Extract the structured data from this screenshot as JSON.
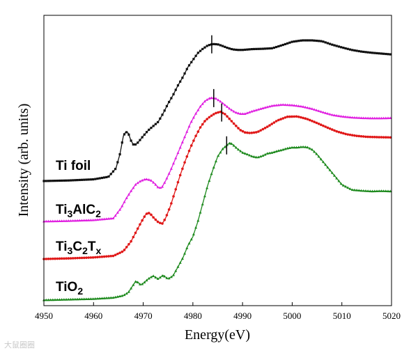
{
  "chart_data": {
    "type": "line",
    "xlabel": "Energy(eV)",
    "ylabel": "Intensity (arb. units)",
    "xlim": [
      4950,
      5020
    ],
    "xticks": [
      "4950",
      "4960",
      "4970",
      "4980",
      "4990",
      "5000",
      "5010",
      "5020"
    ],
    "yticks_shown": false,
    "grid": false,
    "legend": "none",
    "series": [
      {
        "name": "Ti foil",
        "name_parts": [
          {
            "t": "Ti foil",
            "s": ""
          }
        ],
        "color": "#111111",
        "marker": "square",
        "edge_marker_x": 4983.8,
        "x": [
          4950,
          4955,
          4960,
          4963,
          4964.5,
          4965.3,
          4966,
          4966.5,
          4967,
          4967.5,
          4968,
          4968.5,
          4969,
          4970,
          4971,
          4972,
          4973,
          4974,
          4975,
          4976,
          4977,
          4978,
          4979,
          4980,
          4981,
          4982,
          4983,
          4984,
          4985,
          4986,
          4987,
          4988,
          4989,
          4990,
          4992,
          4994,
          4996,
          4998,
          5000,
          5002,
          5004,
          5006,
          5008,
          5010,
          5012,
          5014,
          5016,
          5018,
          5020
        ],
        "y": [
          0.0,
          0.02,
          0.06,
          0.15,
          0.45,
          0.95,
          1.6,
          1.75,
          1.7,
          1.45,
          1.3,
          1.3,
          1.38,
          1.6,
          1.8,
          1.95,
          2.1,
          2.4,
          2.75,
          3.05,
          3.4,
          3.7,
          4.05,
          4.3,
          4.55,
          4.7,
          4.82,
          4.87,
          4.86,
          4.8,
          4.73,
          4.68,
          4.66,
          4.66,
          4.69,
          4.7,
          4.72,
          4.83,
          4.95,
          5.0,
          5.0,
          4.97,
          4.85,
          4.75,
          4.66,
          4.6,
          4.56,
          4.53,
          4.5
        ]
      },
      {
        "name": "Ti3AlC2",
        "name_parts": [
          {
            "t": "Ti",
            "s": ""
          },
          {
            "t": "3",
            "s": "sub"
          },
          {
            "t": "AlC",
            "s": ""
          },
          {
            "t": "2",
            "s": "sub"
          }
        ],
        "color": "#e020e0",
        "marker": "triangle",
        "edge_marker_x": 4984.2,
        "x": [
          4950,
          4955,
          4960,
          4964,
          4965.5,
          4966.5,
          4967.5,
          4968.5,
          4969.5,
          4970.5,
          4971.5,
          4972.3,
          4973,
          4973.7,
          4974.5,
          4975.5,
          4976.5,
          4977.5,
          4978.5,
          4979.5,
          4980.5,
          4981.5,
          4982.5,
          4983.5,
          4984.5,
          4985.5,
          4986.5,
          4987.5,
          4988.5,
          4989.5,
          4990.5,
          4992,
          4994,
          4996,
          4998,
          5000,
          5002,
          5004,
          5006,
          5008,
          5010,
          5012,
          5014,
          5016,
          5018,
          5020
        ],
        "y": [
          0.0,
          0.02,
          0.05,
          0.12,
          0.5,
          0.85,
          1.15,
          1.42,
          1.55,
          1.62,
          1.58,
          1.45,
          1.3,
          1.28,
          1.55,
          1.95,
          2.4,
          2.85,
          3.3,
          3.75,
          4.1,
          4.4,
          4.62,
          4.73,
          4.72,
          4.6,
          4.45,
          4.3,
          4.18,
          4.12,
          4.12,
          4.22,
          4.33,
          4.43,
          4.47,
          4.45,
          4.4,
          4.31,
          4.19,
          4.08,
          4.02,
          3.98,
          3.96,
          3.95,
          3.95,
          3.96
        ]
      },
      {
        "name": "Ti3C2Tx",
        "name_parts": [
          {
            "t": "Ti",
            "s": ""
          },
          {
            "t": "3",
            "s": "sub"
          },
          {
            "t": "C",
            "s": ""
          },
          {
            "t": "2",
            "s": "sub"
          },
          {
            "t": "T",
            "s": ""
          },
          {
            "t": "x",
            "s": "sub"
          }
        ],
        "color": "#e01818",
        "marker": "circle",
        "edge_marker_x": 4985.8,
        "x": [
          4950,
          4955,
          4960,
          4964,
          4966,
          4967.5,
          4968.5,
          4969.5,
          4970.5,
          4971,
          4971.5,
          4972.2,
          4973,
          4973.8,
          4974.5,
          4975.5,
          4976.5,
          4977.5,
          4978.5,
          4979.5,
          4980.5,
          4981.5,
          4982.5,
          4983.5,
          4984.5,
          4985.5,
          4986.5,
          4987.5,
          4988.5,
          4989.5,
          4990.5,
          4991.5,
          4993,
          4995,
          4997,
          4999,
          5001,
          5003,
          5005,
          5007,
          5009,
          5011,
          5013,
          5015,
          5017,
          5020
        ],
        "y": [
          0.0,
          0.02,
          0.05,
          0.1,
          0.25,
          0.55,
          0.85,
          1.15,
          1.42,
          1.48,
          1.43,
          1.3,
          1.18,
          1.12,
          1.3,
          1.7,
          2.2,
          2.7,
          3.15,
          3.55,
          3.9,
          4.2,
          4.42,
          4.55,
          4.65,
          4.7,
          4.62,
          4.45,
          4.28,
          4.12,
          4.04,
          4.02,
          4.05,
          4.22,
          4.42,
          4.54,
          4.55,
          4.47,
          4.34,
          4.2,
          4.07,
          3.98,
          3.93,
          3.9,
          3.89,
          3.88
        ]
      },
      {
        "name": "TiO2",
        "name_parts": [
          {
            "t": "TiO",
            "s": ""
          },
          {
            "t": "2",
            "s": "sub"
          }
        ],
        "color": "#1e8a1e",
        "marker": "triangle",
        "edge_marker_x": 4986.8,
        "x": [
          4950,
          4955,
          4960,
          4964,
          4966,
          4967,
          4968,
          4968.5,
          4969,
          4969.5,
          4970,
          4971,
          4972,
          4973,
          4974,
          4975,
          4976,
          4977,
          4978,
          4979,
          4980,
          4981,
          4982,
          4983,
          4984,
          4985,
          4986,
          4987,
          4987.5,
          4988,
          4989,
          4990,
          4991,
          4992,
          4993,
          4994,
          4995,
          4996,
          4997,
          4998,
          4999,
          5000,
          5001,
          5002,
          5003,
          5004,
          5005,
          5006,
          5007,
          5008,
          5009,
          5010,
          5012,
          5014,
          5016,
          5018,
          5020
        ],
        "y": [
          0.0,
          0.02,
          0.04,
          0.08,
          0.15,
          0.25,
          0.5,
          0.62,
          0.58,
          0.5,
          0.55,
          0.7,
          0.8,
          0.7,
          0.82,
          0.7,
          0.8,
          1.1,
          1.4,
          1.8,
          2.1,
          2.6,
          3.2,
          3.8,
          4.3,
          4.75,
          5.0,
          5.15,
          5.2,
          5.15,
          5.0,
          4.88,
          4.82,
          4.75,
          4.72,
          4.77,
          4.85,
          4.88,
          4.93,
          4.97,
          5.02,
          5.05,
          5.05,
          5.07,
          5.06,
          4.98,
          4.82,
          4.62,
          4.42,
          4.22,
          4.02,
          3.82,
          3.65,
          3.62,
          3.6,
          3.61,
          3.6
        ]
      }
    ]
  },
  "watermark": {
    "text": "大鼠圈圈"
  }
}
